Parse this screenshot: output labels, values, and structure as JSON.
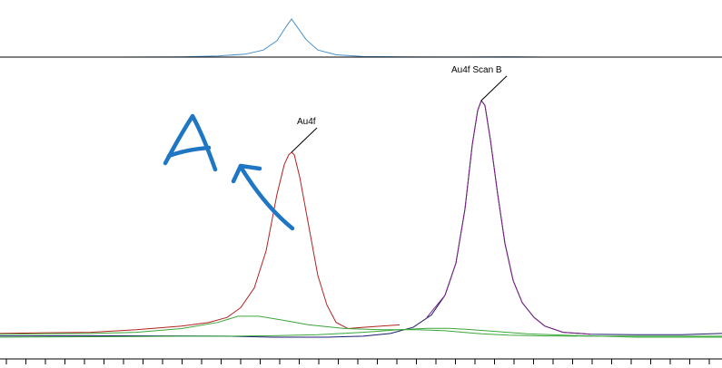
{
  "chart_data": {
    "type": "line",
    "title": "",
    "xlabel": "",
    "ylabel": "",
    "x_range": [
      0,
      795
    ],
    "y_range": [
      0,
      1
    ],
    "grid": false,
    "legend": "none",
    "peak_labels": [
      {
        "text": "Au4f",
        "series": "red",
        "x": 321
      },
      {
        "text": "Au4f Scan B",
        "series": "navy",
        "x": 530
      }
    ],
    "handwriting": {
      "text": "A",
      "color": "#1f77c4"
    },
    "residual_trace": {
      "color": "#4a90c8",
      "x": [
        0,
        120,
        200,
        240,
        270,
        290,
        305,
        315,
        321,
        327,
        337,
        350,
        370,
        400,
        450,
        500,
        560,
        600,
        795
      ],
      "y": [
        0,
        0,
        0.004,
        0.02,
        0.05,
        0.12,
        0.28,
        0.52,
        0.65,
        0.52,
        0.3,
        0.12,
        0.04,
        0.01,
        0.004,
        0.002,
        0.006,
        0,
        0
      ]
    },
    "series": [
      {
        "color": "#b22222",
        "x": [
          0,
          50,
          100,
          150,
          200,
          230,
          250,
          265,
          280,
          293,
          305,
          313,
          318,
          321,
          324,
          330,
          340,
          350,
          360,
          370,
          383,
          400,
          420,
          440
        ],
        "y": [
          0.015,
          0.018,
          0.02,
          0.03,
          0.045,
          0.06,
          0.08,
          0.12,
          0.2,
          0.35,
          0.58,
          0.7,
          0.74,
          0.75,
          0.74,
          0.65,
          0.45,
          0.25,
          0.13,
          0.06,
          0.035,
          0.04,
          0.045,
          0.05
        ]
      },
      {
        "color": "#1a1a6e",
        "x": [
          0,
          100,
          200,
          250,
          300,
          360,
          400,
          430,
          455,
          475,
          490,
          502,
          512,
          520,
          526,
          530,
          534,
          540,
          548,
          556,
          565,
          575,
          588,
          600,
          620,
          650,
          700,
          750,
          795
        ],
        "y": [
          0.005,
          0.006,
          0.005,
          0.004,
          0.0,
          0.0,
          0.004,
          0.015,
          0.04,
          0.09,
          0.17,
          0.3,
          0.52,
          0.78,
          0.92,
          0.96,
          0.94,
          0.8,
          0.58,
          0.38,
          0.23,
          0.14,
          0.08,
          0.045,
          0.02,
          0.012,
          0.01,
          0.01,
          0.015
        ]
      },
      {
        "color": "#7a2080",
        "x": [
          470,
          490,
          502,
          512,
          520,
          526,
          530,
          534,
          540,
          548,
          556,
          565,
          575,
          588,
          600,
          620,
          650
        ],
        "y": [
          0.08,
          0.17,
          0.3,
          0.52,
          0.78,
          0.92,
          0.96,
          0.94,
          0.8,
          0.58,
          0.38,
          0.23,
          0.14,
          0.08,
          0.045,
          0.02,
          0.012
        ]
      },
      {
        "color": "#3aa63a",
        "x": [
          0,
          100,
          150,
          200,
          240,
          262,
          285,
          310,
          340,
          380,
          420,
          460,
          490,
          510,
          530,
          560,
          600,
          650,
          700,
          795
        ],
        "y": [
          0.012,
          0.015,
          0.02,
          0.035,
          0.06,
          0.085,
          0.085,
          0.07,
          0.05,
          0.035,
          0.03,
          0.03,
          0.026,
          0.02,
          0.014,
          0.008,
          0.005,
          0.004,
          0.004,
          0.004
        ]
      },
      {
        "color": "#3aa63a",
        "x": [
          0,
          100,
          200,
          250,
          300,
          350,
          400,
          440,
          470,
          495,
          520,
          550,
          580,
          620,
          660,
          700,
          795
        ],
        "y": [
          0.0,
          0.002,
          0.004,
          0.004,
          0.006,
          0.01,
          0.02,
          0.03,
          0.036,
          0.036,
          0.03,
          0.022,
          0.014,
          0.008,
          0.004,
          0.0,
          0.0
        ]
      }
    ]
  }
}
